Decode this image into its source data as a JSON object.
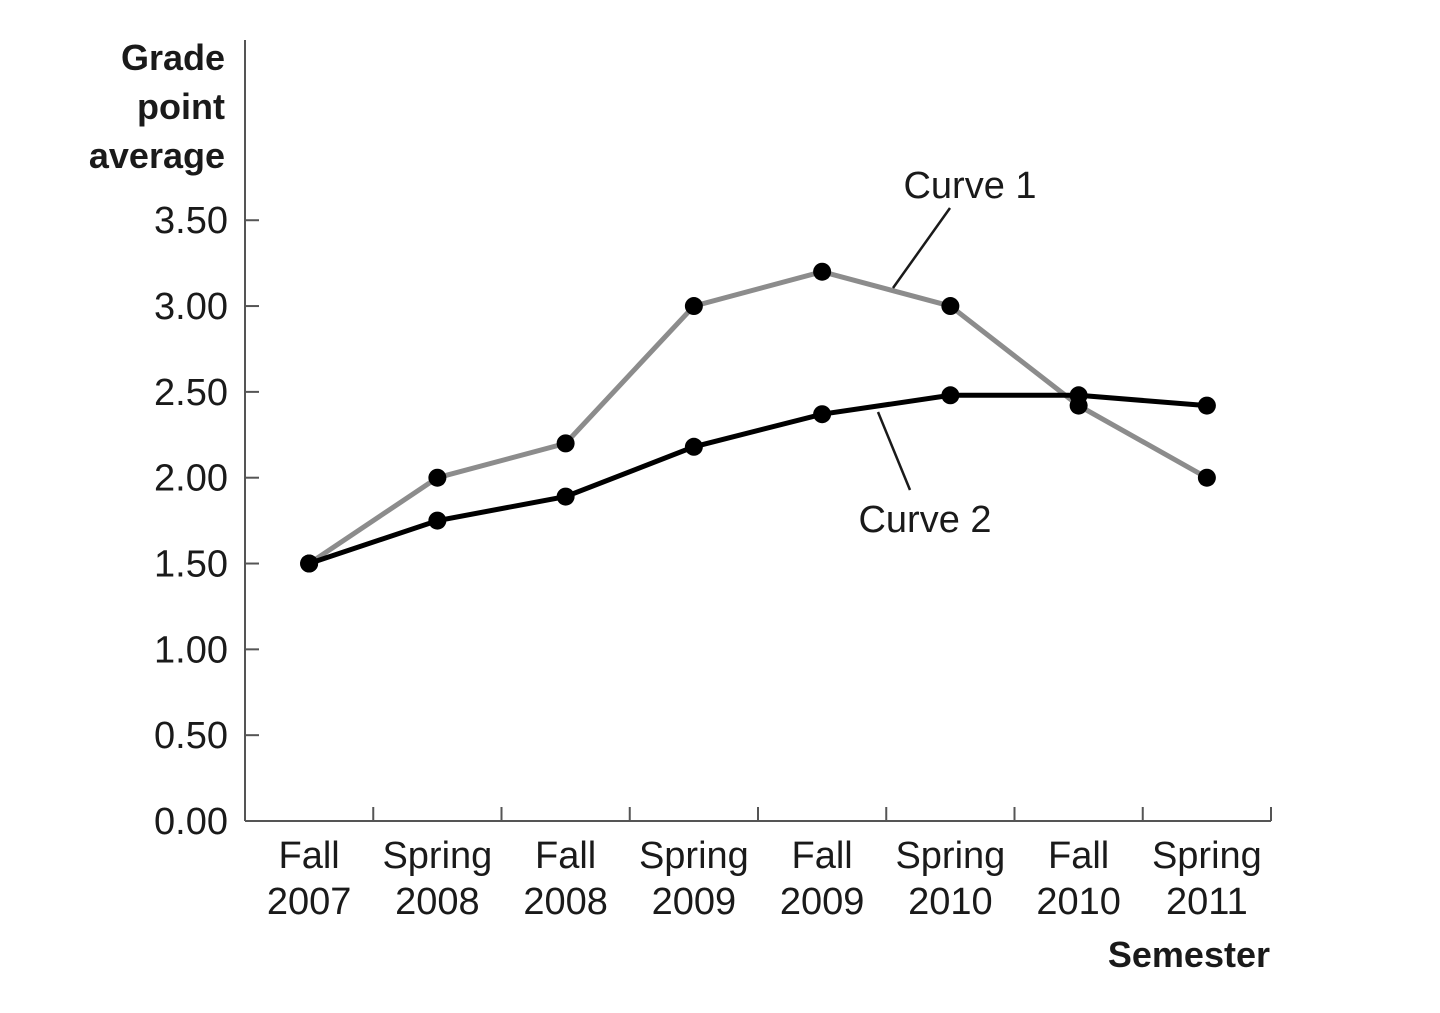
{
  "chart_data": {
    "type": "line",
    "y_label": "Grade point average",
    "x_label": "Semester",
    "categories": [
      "Fall 2007",
      "Spring 2008",
      "Fall 2008",
      "Spring 2009",
      "Fall 2009",
      "Spring 2010",
      "Fall 2010",
      "Spring 2011"
    ],
    "series": [
      {
        "name": "Curve 1",
        "color": "#8c8c8c",
        "values": [
          1.5,
          2.0,
          2.2,
          3.0,
          3.2,
          3.0,
          2.42,
          2.0
        ]
      },
      {
        "name": "Curve 2",
        "color": "#000000",
        "values": [
          1.5,
          1.75,
          1.89,
          2.18,
          2.37,
          2.48,
          2.48,
          2.42
        ]
      }
    ],
    "ylim": [
      0,
      4.55
    ],
    "yticks": [
      {
        "value": 0,
        "label": "0.00"
      },
      {
        "value": 0.5,
        "label": "0.50"
      },
      {
        "value": 1,
        "label": "1.00"
      },
      {
        "value": 1.5,
        "label": "1.50"
      },
      {
        "value": 2,
        "label": "2.00"
      },
      {
        "value": 2.5,
        "label": "2.50"
      },
      {
        "value": 3,
        "label": "3.00"
      },
      {
        "value": 3.5,
        "label": "3.50"
      }
    ],
    "grid": false
  }
}
